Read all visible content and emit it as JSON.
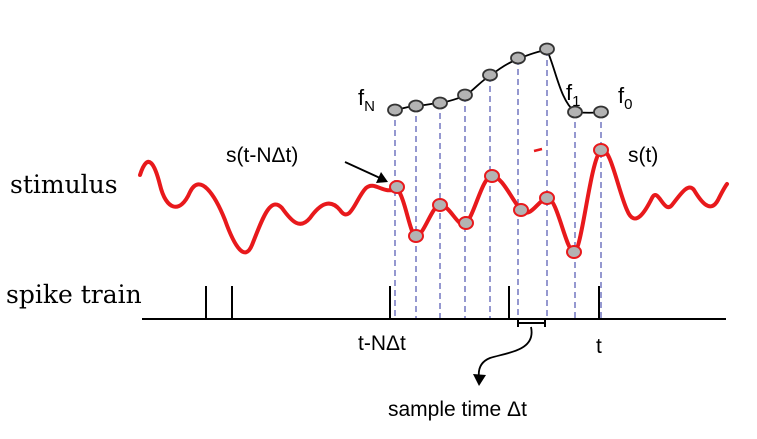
{
  "labels": {
    "stimulus": "stimulus",
    "spike_train": "spike train",
    "s_t": "s(t)",
    "s_t_minus": "s(t-NΔt)",
    "f_N": "f",
    "f_N_sub": "N",
    "f_1": "f",
    "f_1_sub": "1",
    "f_0": "f",
    "f_0_sub": "0",
    "t_minus": "t-NΔt",
    "t": "t",
    "sample_time": "sample time Δt"
  },
  "colors": {
    "stimulus": "#e8191c",
    "dashed": "#7b7fc4",
    "node_fill": "#b3b3b3",
    "node_stroke_filter": "#333333",
    "node_stroke_stim": "#e8191c",
    "text": "#000000"
  }
}
